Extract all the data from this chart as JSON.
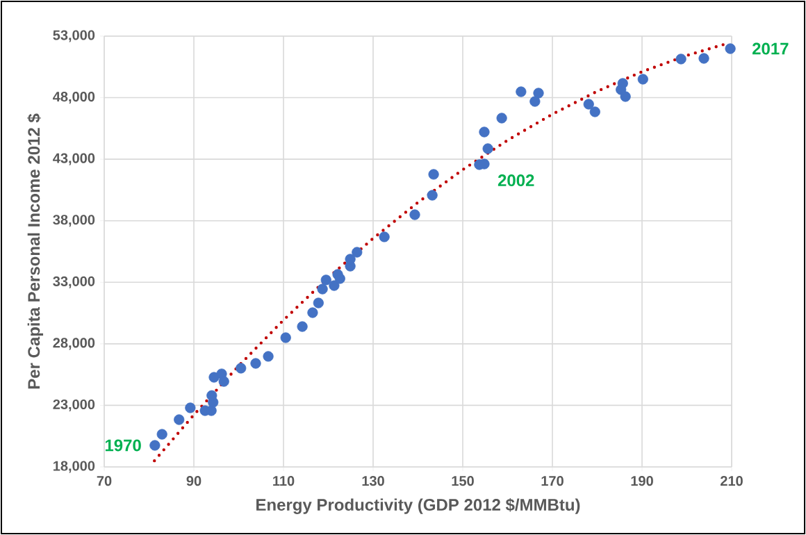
{
  "chart_data": {
    "type": "scatter",
    "xlabel": "Energy Productivity (GDP 2012 $/MMBtu)",
    "ylabel": "Per Capita Personal Income 2012 $",
    "xlim": [
      70,
      210
    ],
    "xticks": [
      70,
      90,
      110,
      130,
      150,
      170,
      190,
      210
    ],
    "ylim": [
      18000,
      53000
    ],
    "yticks": [
      {
        "value": 18000,
        "label": "18,000"
      },
      {
        "value": 23000,
        "label": "23,000"
      },
      {
        "value": 28000,
        "label": "28,000"
      },
      {
        "value": 33000,
        "label": "33,000"
      },
      {
        "value": 38000,
        "label": "38,000"
      },
      {
        "value": 43000,
        "label": "43,000"
      },
      {
        "value": 48000,
        "label": "48,000"
      },
      {
        "value": 53000,
        "label": "53,000"
      }
    ],
    "grid": true,
    "series": [
      {
        "color": "#4472c4",
        "marker": "circle",
        "x": [
          81.3,
          82.9,
          86.7,
          89.2,
          92.5,
          93.9,
          94.3,
          94.0,
          94.5,
          96.2,
          96.7,
          100.5,
          103.8,
          106.6,
          110.5,
          114.2,
          116.5,
          117.8,
          118.7,
          119.5,
          121.3,
          122.1,
          122.6,
          124.9,
          124.9,
          126.4,
          132.5,
          139.3,
          143.2,
          143.5,
          153.7,
          154.8,
          154.8,
          155.6,
          158.7,
          163.0,
          166.1,
          166.9,
          178.1,
          179.5,
          185.3,
          185.7,
          186.3,
          190.2,
          198.7,
          203.8,
          209.7
        ],
        "values": [
          19750,
          20650,
          21840,
          22800,
          22570,
          22570,
          23250,
          23800,
          25280,
          25560,
          24940,
          26020,
          26410,
          26980,
          28500,
          29400,
          30530,
          31320,
          32450,
          33190,
          32730,
          33640,
          33300,
          34310,
          34880,
          35440,
          36690,
          38490,
          40070,
          41770,
          42560,
          42610,
          45210,
          43860,
          46340,
          48480,
          47690,
          48370,
          47470,
          46850,
          48650,
          49160,
          48090,
          49500,
          51140,
          51190,
          51980
        ]
      },
      {
        "type": "line",
        "color": "#c00000",
        "marker": "none",
        "line_style": "dotted",
        "x": [
          81.2,
          90,
          100,
          110,
          120,
          130,
          140,
          150,
          160,
          170,
          180,
          190,
          200,
          208.8
        ],
        "values": [
          18500,
          22230,
          26210,
          29930,
          33380,
          36570,
          39490,
          42150,
          44540,
          46660,
          48520,
          50110,
          51430,
          52380
        ]
      }
    ],
    "annotations": [
      {
        "text": "1970",
        "x": 81.3,
        "y": 19750
      },
      {
        "text": "2002",
        "x": 154.8,
        "y": 42610
      },
      {
        "text": "2017",
        "x": 209.7,
        "y": 51980
      }
    ]
  }
}
